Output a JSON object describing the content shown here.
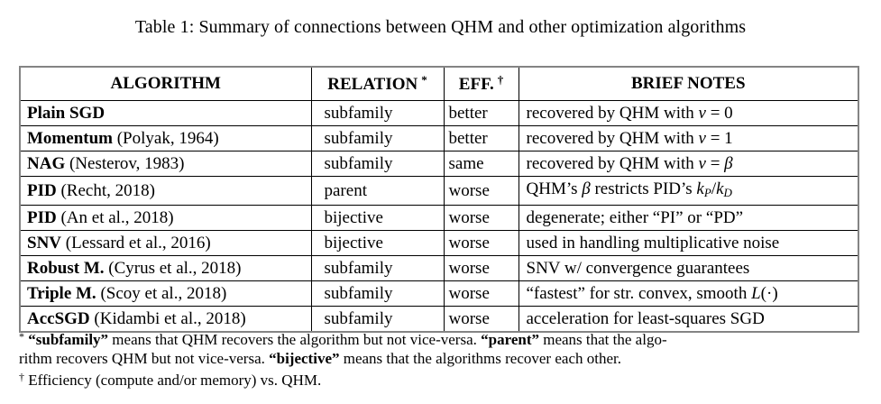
{
  "title": "Table 1: Summary of connections between QHM and other optimization algorithms",
  "colors": {
    "text": "#000000",
    "background": "#ffffff",
    "inner_border": "#000000",
    "outer_border": "#848484"
  },
  "table": {
    "headers": [
      {
        "label": "ALGORITHM",
        "marker": ""
      },
      {
        "label": "RELATION",
        "marker": "*"
      },
      {
        "label": "EFF.",
        "marker": "†"
      },
      {
        "label": "BRIEF NOTES",
        "marker": ""
      }
    ],
    "rows": [
      {
        "algorithm": [
          {
            "t": "Plain SGD",
            "b": true
          }
        ],
        "relation": "subfamily",
        "eff": "better",
        "notes": [
          {
            "t": "recovered by QHM with "
          },
          {
            "t": "ν",
            "i": true
          },
          {
            "t": " = 0"
          }
        ]
      },
      {
        "algorithm": [
          {
            "t": "Momentum",
            "b": true
          },
          {
            "t": " (Polyak, 1964)"
          }
        ],
        "relation": "subfamily",
        "eff": "better",
        "notes": [
          {
            "t": "recovered by QHM with "
          },
          {
            "t": "ν",
            "i": true
          },
          {
            "t": " = 1"
          }
        ]
      },
      {
        "algorithm": [
          {
            "t": "NAG",
            "b": true
          },
          {
            "t": " (Nesterov, 1983)"
          }
        ],
        "relation": "subfamily",
        "eff": "same",
        "notes": [
          {
            "t": "recovered by QHM with "
          },
          {
            "t": "ν",
            "i": true
          },
          {
            "t": " = "
          },
          {
            "t": "β",
            "i": true
          }
        ]
      },
      {
        "algorithm": [
          {
            "t": "PID",
            "b": true
          },
          {
            "t": " (Recht, 2018)"
          }
        ],
        "relation": "parent",
        "eff": "worse",
        "notes": [
          {
            "t": "QHM’s "
          },
          {
            "t": "β",
            "i": true
          },
          {
            "t": " restricts PID’s "
          },
          {
            "t": "k",
            "i": true
          },
          {
            "t": "P",
            "i": true,
            "sub": true
          },
          {
            "t": "/"
          },
          {
            "t": "k",
            "i": true
          },
          {
            "t": "D",
            "i": true,
            "sub": true
          }
        ]
      },
      {
        "algorithm": [
          {
            "t": "PID",
            "b": true
          },
          {
            "t": " (An et al., 2018)"
          }
        ],
        "relation": "bijective",
        "eff": "worse",
        "notes": [
          {
            "t": "degenerate; either “PI” or “PD”"
          }
        ]
      },
      {
        "algorithm": [
          {
            "t": "SNV",
            "b": true
          },
          {
            "t": " (Lessard et al., 2016)"
          }
        ],
        "relation": "bijective",
        "eff": "worse",
        "notes": [
          {
            "t": "used in handling multiplicative noise"
          }
        ]
      },
      {
        "algorithm": [
          {
            "t": "Robust M.",
            "b": true
          },
          {
            "t": " (Cyrus et al., 2018)"
          }
        ],
        "relation": "subfamily",
        "eff": "worse",
        "notes": [
          {
            "t": "SNV w/ convergence guarantees"
          }
        ]
      },
      {
        "algorithm": [
          {
            "t": "Triple M.",
            "b": true
          },
          {
            "t": " (Scoy et al., 2018)"
          }
        ],
        "relation": "subfamily",
        "eff": "worse",
        "notes": [
          {
            "t": "“fastest” for str. convex, smooth "
          },
          {
            "t": "L",
            "i": true
          },
          {
            "t": "(·)"
          }
        ]
      },
      {
        "algorithm": [
          {
            "t": "AccSGD",
            "b": true
          },
          {
            "t": " (Kidambi et al., 2018)"
          }
        ],
        "relation": "subfamily",
        "eff": "worse",
        "notes": [
          {
            "t": "acceleration for least-squares SGD"
          }
        ]
      }
    ]
  },
  "footnotes": [
    {
      "runs": [
        {
          "t": "*",
          "sup": true
        },
        {
          "t": " "
        },
        {
          "t": "“subfamily”",
          "b": true
        },
        {
          "t": " means that QHM recovers the algorithm but not vice-versa. "
        },
        {
          "t": "“parent”",
          "b": true
        },
        {
          "t": " means that the algo-"
        },
        {
          "br": true
        },
        {
          "t": "rithm recovers QHM but not vice-versa. "
        },
        {
          "t": "“bijective”",
          "b": true
        },
        {
          "t": " means that the algorithms recover each other."
        }
      ]
    },
    {
      "runs": [
        {
          "t": "†",
          "sup": true
        },
        {
          "t": " Efficiency (compute and/or memory) vs. QHM."
        }
      ]
    }
  ]
}
